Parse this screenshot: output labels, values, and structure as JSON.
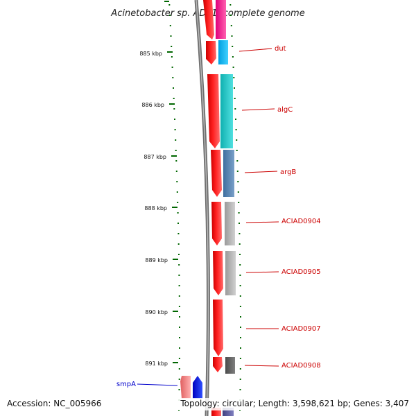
{
  "title": "Acinetobacter sp. ADP1, complete genome",
  "accession": "Accession: NC_005966",
  "summary": "Topology: circular; Length: 3,598,621 bp; Genes: 3,407",
  "ruler": {
    "labels": [
      "885 kbp",
      "886 kbp",
      "887 kbp",
      "888 kbp",
      "889 kbp",
      "890 kbp",
      "891 kbp"
    ]
  },
  "genes": [
    {
      "name": "dut",
      "color": "#cc0000"
    },
    {
      "name": "algC",
      "color": "#cc0000"
    },
    {
      "name": "argB",
      "color": "#cc0000"
    },
    {
      "name": "ACIAD0904",
      "color": "#cc0000"
    },
    {
      "name": "ACIAD0905",
      "color": "#cc0000"
    },
    {
      "name": "ACIAD0907",
      "color": "#cc0000"
    },
    {
      "name": "ACIAD0908",
      "color": "#cc0000"
    },
    {
      "name": "smpA",
      "color": "#0000cc"
    }
  ],
  "colors": {
    "cds_forward": "#ff0000",
    "cds_reverse": "#0000ff",
    "backbone": "#808080",
    "ruler": "#006600",
    "cog_colors": [
      "#ff1493",
      "#00bfff",
      "#20c0c0",
      "#4f7fb0",
      "#b0b0b0",
      "#b0b0b0",
      "#606060"
    ]
  }
}
